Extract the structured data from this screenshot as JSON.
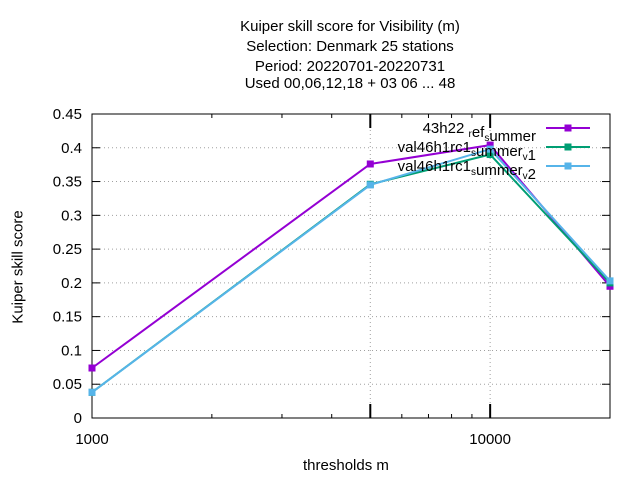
{
  "chart_data": {
    "type": "line",
    "title_lines": [
      "Kuiper skill score  for Visibility (m)",
      "Selection: Denmark     25 stations",
      "Period: 20220701-20220731",
      "Used  00,06,12,18  + 03 06 ... 48"
    ],
    "xlabel": "thresholds m",
    "ylabel": "Kuiper skill score",
    "x_scale": "log",
    "xlim": [
      1000,
      20000
    ],
    "ylim": [
      0,
      0.45
    ],
    "x_ticks": [
      {
        "value": 1000,
        "label": "1000"
      },
      {
        "value": 10000,
        "label": "10000"
      }
    ],
    "y_ticks": [
      {
        "value": 0,
        "label": "0"
      },
      {
        "value": 0.05,
        "label": "0.05"
      },
      {
        "value": 0.1,
        "label": "0.1"
      },
      {
        "value": 0.15,
        "label": "0.15"
      },
      {
        "value": 0.2,
        "label": "0.2"
      },
      {
        "value": 0.25,
        "label": "0.25"
      },
      {
        "value": 0.3,
        "label": "0.3"
      },
      {
        "value": 0.35,
        "label": "0.35"
      },
      {
        "value": 0.4,
        "label": "0.4"
      },
      {
        "value": 0.45,
        "label": "0.45"
      }
    ],
    "grid": true,
    "legend_position": "top-right",
    "series": [
      {
        "name": "43h22 ref summer",
        "label_parts": [
          [
            "43h22 ",
            "n"
          ],
          [
            "r",
            "sub"
          ],
          [
            "ef",
            "n"
          ],
          [
            "s",
            "sub"
          ],
          [
            "ummer",
            "n"
          ]
        ],
        "color": "#9400d3",
        "x": [
          1000,
          5000,
          10000,
          20000
        ],
        "y": [
          0.074,
          0.376,
          0.404,
          0.195
        ]
      },
      {
        "name": "val46h1rc1 summer v1",
        "label_parts": [
          [
            "val46h1rc1",
            "n"
          ],
          [
            "s",
            "sub"
          ],
          [
            "ummer",
            "n"
          ],
          [
            "v",
            "sub"
          ],
          [
            "1",
            "n"
          ]
        ],
        "color": "#009e73",
        "x": [
          1000,
          5000,
          10000,
          20000
        ],
        "y": [
          0.038,
          0.346,
          0.39,
          0.2
        ]
      },
      {
        "name": "val46h1rc1 summer v2",
        "label_parts": [
          [
            "val46h1rc1",
            "n"
          ],
          [
            "s",
            "sub"
          ],
          [
            "ummer",
            "n"
          ],
          [
            "v",
            "sub"
          ],
          [
            "2",
            "n"
          ]
        ],
        "color": "#56b4e9",
        "x": [
          1000,
          5000,
          10000,
          20000
        ],
        "y": [
          0.038,
          0.345,
          0.398,
          0.203
        ]
      }
    ]
  }
}
